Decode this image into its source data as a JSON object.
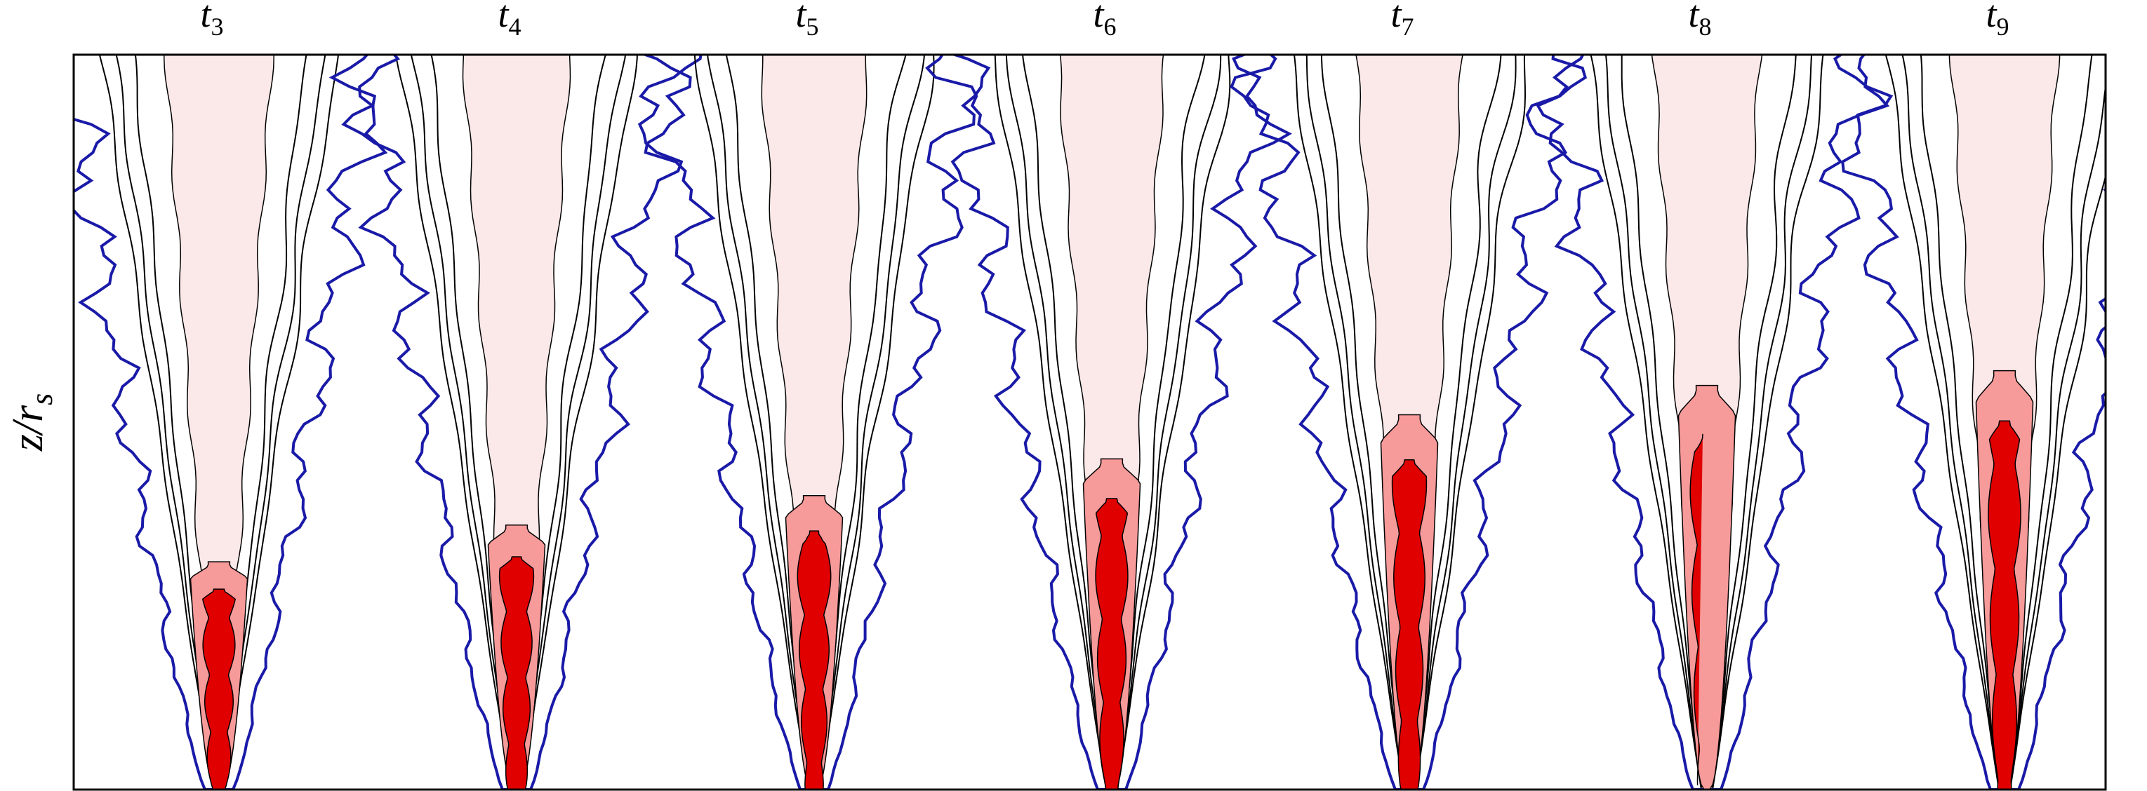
{
  "panels": [
    {
      "label": "t",
      "subscript": "3"
    },
    {
      "label": "t",
      "subscript": "4"
    },
    {
      "label": "t",
      "subscript": "5"
    },
    {
      "label": "t",
      "subscript": "6"
    },
    {
      "label": "t",
      "subscript": "7"
    },
    {
      "label": "t",
      "subscript": "8"
    },
    {
      "label": "t",
      "subscript": "9"
    }
  ],
  "ylabel": {
    "text": "z/r",
    "subscript": "s"
  }
}
